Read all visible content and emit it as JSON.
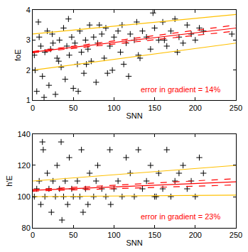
{
  "chart_data": [
    {
      "type": "scatter",
      "x_label": "SNN",
      "y_label": "foE",
      "xlim": [
        0,
        250
      ],
      "xticks": [
        0,
        50,
        100,
        150,
        200,
        250
      ],
      "ylim": [
        1,
        4
      ],
      "yticks": [
        1,
        2,
        3,
        4
      ],
      "annotations": [
        {
          "text": "error in gradient = 14%",
          "color": "#ff0000"
        }
      ],
      "series": [
        {
          "type": "scatter",
          "marker": "cross",
          "color": "#000000",
          "x": [
            2,
            5,
            8,
            10,
            12,
            15,
            18,
            20,
            22,
            25,
            28,
            30,
            33,
            35,
            38,
            40,
            42,
            45,
            48,
            50,
            52,
            55,
            58,
            60,
            63,
            65,
            68,
            70,
            72,
            75,
            78,
            80,
            85,
            88,
            90,
            95,
            98,
            100,
            105,
            108,
            110,
            115,
            118,
            120,
            125,
            128,
            130,
            135,
            140,
            145,
            150,
            155,
            160,
            165,
            170,
            175,
            180,
            185,
            190,
            195,
            200,
            205,
            210,
            3,
            7,
            14,
            24,
            32,
            44,
            56,
            66,
            82,
            92,
            112,
            132,
            148,
            162,
            178,
            245
          ],
          "values": [
            2.5,
            1.3,
            3.1,
            2.8,
            1.8,
            2.6,
            3.3,
            1.5,
            2.7,
            2.9,
            1.2,
            2.4,
            3.0,
            2.1,
            3.4,
            1.7,
            2.8,
            2.5,
            3.1,
            1.4,
            2.9,
            2.2,
            3.3,
            2.6,
            1.9,
            3.0,
            2.7,
            3.5,
            2.3,
            3.1,
            1.6,
            2.9,
            3.2,
            2.4,
            3.4,
            2.8,
            2.0,
            3.1,
            3.3,
            2.6,
            3.5,
            2.9,
            1.8,
            3.2,
            3.0,
            3.6,
            2.5,
            3.3,
            3.1,
            2.7,
            3.4,
            3.0,
            3.6,
            2.8,
            3.3,
            3.7,
            3.1,
            2.9,
            3.5,
            3.2,
            3.0,
            3.4,
            3.3,
            2.0,
            3.6,
            1.1,
            3.2,
            2.3,
            3.7,
            1.3,
            2.2,
            3.5,
            1.9,
            2.2,
            2.4,
            3.9,
            3.0,
            2.6,
            3.2
          ]
        },
        {
          "type": "line",
          "line_style": "solid",
          "color": "#ffc000",
          "x": [
            0,
            250
          ],
          "values": [
            3.2,
            3.85
          ]
        },
        {
          "type": "line",
          "line_style": "solid",
          "color": "#ffc000",
          "x": [
            0,
            250
          ],
          "values": [
            2.0,
            2.9
          ]
        },
        {
          "type": "line",
          "line_style": "dashed",
          "color": "#ff0000",
          "x": [
            0,
            250
          ],
          "values": [
            2.62,
            3.5
          ]
        },
        {
          "type": "line",
          "line_style": "dashed",
          "color": "#ff0000",
          "x": [
            0,
            250
          ],
          "values": [
            2.58,
            3.3
          ]
        },
        {
          "type": "line",
          "line_style": "solid",
          "color": "#ff0000",
          "x": [
            0,
            250
          ],
          "values": [
            2.6,
            3.4
          ]
        }
      ]
    },
    {
      "type": "scatter",
      "x_label": "SNN",
      "y_label": "h'E",
      "xlim": [
        0,
        250
      ],
      "xticks": [
        0,
        50,
        100,
        150,
        200,
        250
      ],
      "ylim": [
        80,
        140
      ],
      "yticks": [
        80,
        100,
        120,
        140
      ],
      "annotations": [
        {
          "text": "error in gradient = 23%",
          "color": "#ff0000"
        }
      ],
      "series": [
        {
          "type": "scatter",
          "marker": "cross",
          "color": "#000000",
          "x": [
            2,
            5,
            8,
            10,
            13,
            15,
            18,
            20,
            23,
            25,
            28,
            30,
            33,
            35,
            38,
            40,
            43,
            45,
            48,
            50,
            55,
            58,
            60,
            65,
            68,
            70,
            75,
            78,
            80,
            85,
            90,
            95,
            100,
            105,
            110,
            115,
            120,
            125,
            130,
            135,
            140,
            145,
            150,
            155,
            160,
            165,
            170,
            175,
            180,
            185,
            190,
            195,
            200,
            205,
            210,
            12,
            36,
            62,
            96,
            152
          ],
          "values": [
            100,
            105,
            110,
            95,
            130,
            100,
            115,
            105,
            90,
            110,
            100,
            120,
            105,
            135,
            100,
            110,
            95,
            125,
            105,
            100,
            110,
            100,
            130,
            105,
            95,
            115,
            100,
            110,
            120,
            105,
            100,
            130,
            105,
            110,
            100,
            125,
            115,
            100,
            130,
            105,
            110,
            120,
            100,
            115,
            105,
            130,
            100,
            110,
            115,
            120,
            105,
            110,
            100,
            125,
            115,
            135,
            85,
            90,
            95,
            100
          ]
        },
        {
          "type": "line",
          "line_style": "solid",
          "color": "#ffc000",
          "x": [
            0,
            250
          ],
          "values": [
            110,
            120
          ]
        },
        {
          "type": "line",
          "line_style": "solid",
          "color": "#ffc000",
          "x": [
            0,
            250
          ],
          "values": [
            100,
            101
          ]
        },
        {
          "type": "line",
          "line_style": "dashed",
          "color": "#ff0000",
          "x": [
            0,
            250
          ],
          "values": [
            104.5,
            111.5
          ]
        },
        {
          "type": "line",
          "line_style": "dashed",
          "color": "#ff0000",
          "x": [
            0,
            250
          ],
          "values": [
            103.5,
            107.5
          ]
        },
        {
          "type": "line",
          "line_style": "solid",
          "color": "#ff0000",
          "x": [
            0,
            250
          ],
          "values": [
            104,
            109.5
          ]
        }
      ]
    }
  ]
}
